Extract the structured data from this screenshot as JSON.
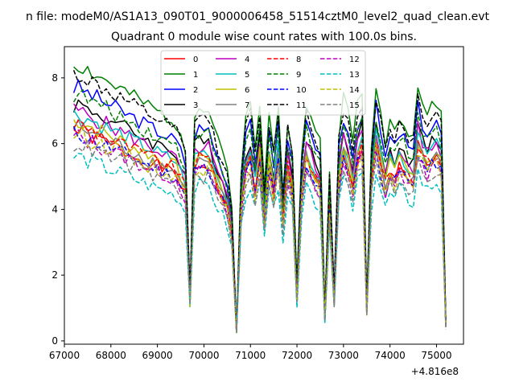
{
  "page": {
    "suptitle": "n file: modeM0/AS1A13_090T01_9000006458_51514cztM0_level2_quad_clean.evt"
  },
  "chart_data": {
    "type": "line",
    "title": "Quadrant 0 module wise count rates with 100.0s bins.",
    "xlabel": "",
    "ylabel": "",
    "x_offset_label": "+4.816e8",
    "xlim": [
      67000,
      75580
    ],
    "ylim": [
      -0.1,
      8.95
    ],
    "x_ticks": [
      67000,
      68000,
      69000,
      70000,
      71000,
      72000,
      73000,
      74000,
      75000
    ],
    "x_tick_labels": [
      "67000",
      "68000",
      "69000",
      "70000",
      "71000",
      "72000",
      "73000",
      "74000",
      "75000"
    ],
    "y_ticks": [
      0,
      2,
      4,
      6,
      8
    ],
    "y_tick_labels": [
      "0",
      "2",
      "4",
      "6",
      "8"
    ],
    "x": [
      67200,
      67300,
      67400,
      67500,
      67600,
      67700,
      67800,
      67900,
      68000,
      68100,
      68200,
      68300,
      68400,
      68500,
      68600,
      68700,
      68800,
      68900,
      69000,
      69100,
      69200,
      69300,
      69400,
      69500,
      69600,
      69700,
      69800,
      69900,
      70000,
      70100,
      70200,
      70300,
      70400,
      70500,
      70600,
      70700,
      70800,
      70900,
      71000,
      71100,
      71200,
      71300,
      71400,
      71500,
      71600,
      71700,
      71800,
      71900,
      72000,
      72100,
      72200,
      72300,
      72400,
      72500,
      72600,
      72700,
      72800,
      72900,
      73000,
      73100,
      73200,
      73300,
      73400,
      73500,
      73600,
      73700,
      73800,
      73900,
      74000,
      74100,
      74200,
      74300,
      74400,
      74500,
      74600,
      74700,
      74800,
      74900,
      75000,
      75100,
      75200
    ],
    "envelope": [
      1.0,
      1.0,
      0.99,
      0.98,
      0.97,
      0.96,
      0.95,
      0.94,
      0.93,
      0.92,
      0.91,
      0.9,
      0.89,
      0.88,
      0.87,
      0.86,
      0.85,
      0.84,
      0.83,
      0.82,
      0.81,
      0.8,
      0.79,
      0.75,
      0.7,
      0.2,
      0.82,
      0.84,
      0.83,
      0.84,
      0.78,
      0.72,
      0.68,
      0.62,
      0.5,
      0.05,
      0.62,
      0.8,
      0.85,
      0.7,
      0.85,
      0.55,
      0.82,
      0.7,
      0.86,
      0.55,
      0.8,
      0.7,
      0.22,
      0.68,
      0.86,
      0.8,
      0.75,
      0.72,
      0.12,
      0.62,
      0.2,
      0.75,
      0.88,
      0.82,
      0.72,
      0.86,
      0.9,
      0.15,
      0.72,
      0.92,
      0.82,
      0.72,
      0.8,
      0.76,
      0.82,
      0.8,
      0.76,
      0.75,
      0.92,
      0.86,
      0.82,
      0.84,
      0.86,
      0.82,
      0.08
    ],
    "series": [
      {
        "name": "0",
        "color": "#ff0000",
        "dash": "solid",
        "base": 6.4,
        "seed": 1
      },
      {
        "name": "1",
        "color": "#008000",
        "dash": "solid",
        "base": 8.4,
        "seed": 2
      },
      {
        "name": "2",
        "color": "#0000ff",
        "dash": "solid",
        "base": 7.7,
        "seed": 3
      },
      {
        "name": "3",
        "color": "#000000",
        "dash": "solid",
        "base": 7.2,
        "seed": 4
      },
      {
        "name": "4",
        "color": "#bf00bf",
        "dash": "solid",
        "base": 7.0,
        "seed": 5
      },
      {
        "name": "5",
        "color": "#00bfbf",
        "dash": "solid",
        "base": 6.9,
        "seed": 6
      },
      {
        "name": "6",
        "color": "#bfbf00",
        "dash": "solid",
        "base": 6.7,
        "seed": 7
      },
      {
        "name": "7",
        "color": "#808080",
        "dash": "solid",
        "base": 6.5,
        "seed": 8
      },
      {
        "name": "8",
        "color": "#ff0000",
        "dash": "dashed",
        "base": 6.6,
        "seed": 9
      },
      {
        "name": "9",
        "color": "#008000",
        "dash": "dashed",
        "base": 7.5,
        "seed": 10
      },
      {
        "name": "10",
        "color": "#0000ff",
        "dash": "dashed",
        "base": 6.3,
        "seed": 11
      },
      {
        "name": "11",
        "color": "#000000",
        "dash": "dashed",
        "base": 8.1,
        "seed": 12
      },
      {
        "name": "12",
        "color": "#bf00bf",
        "dash": "dashed",
        "base": 6.2,
        "seed": 13
      },
      {
        "name": "13",
        "color": "#00bfbf",
        "dash": "dashed",
        "base": 5.6,
        "seed": 14
      },
      {
        "name": "14",
        "color": "#bfbf00",
        "dash": "dashed",
        "base": 6.3,
        "seed": 15
      },
      {
        "name": "15",
        "color": "#808080",
        "dash": "dashed",
        "base": 6.0,
        "seed": 16
      }
    ],
    "legend_position": "upper-center",
    "legend_columns": 4,
    "grid": false
  }
}
